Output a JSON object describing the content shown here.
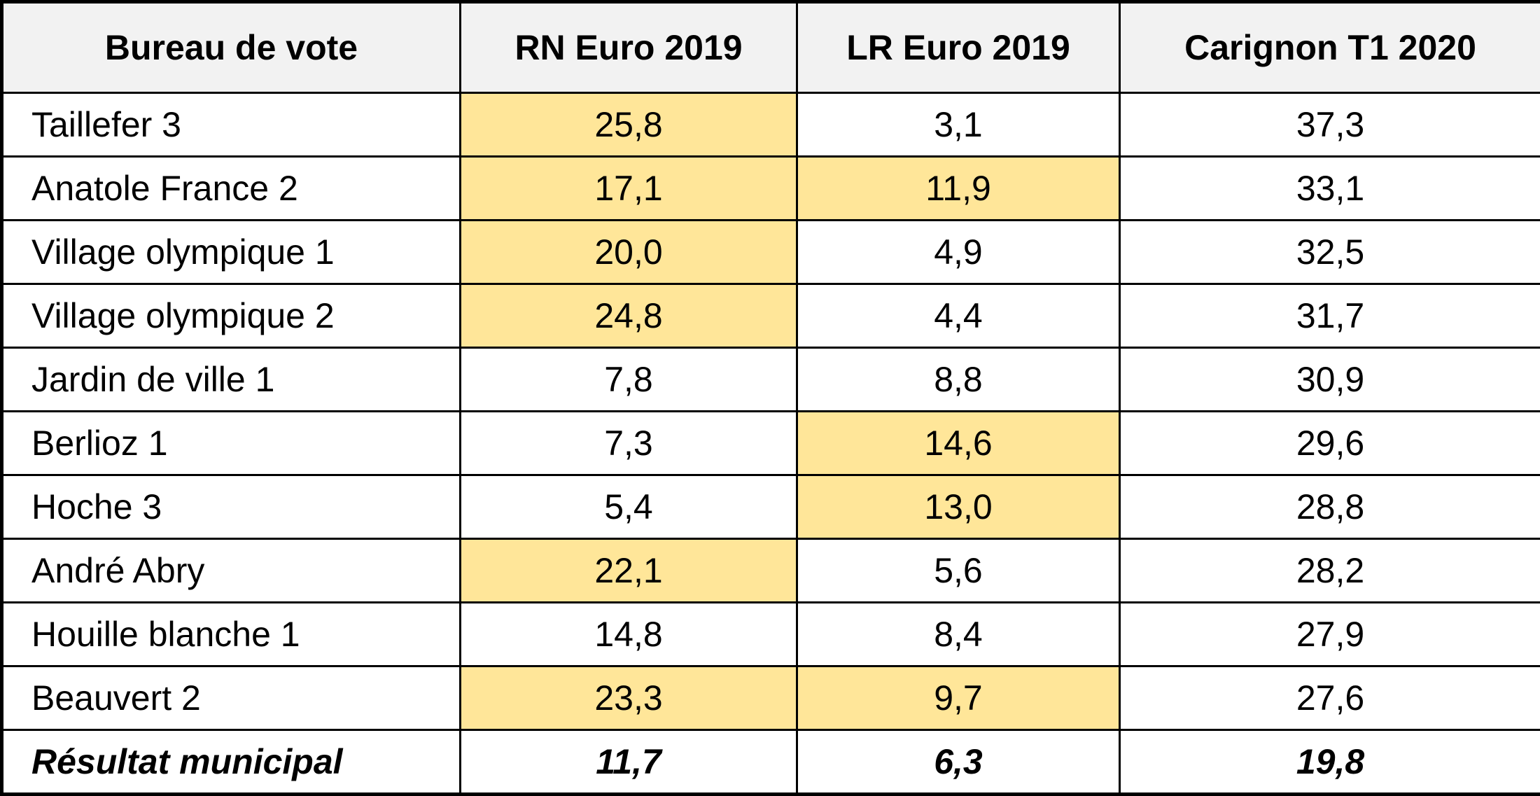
{
  "colors": {
    "highlight": "#ffe699",
    "header_bg": "#f2f2f2"
  },
  "headers": [
    "Bureau de vote",
    "RN Euro 2019",
    "LR Euro 2019",
    "Carignon T1 2020"
  ],
  "rows": [
    {
      "name": "Taillefer 3",
      "rn": "25,8",
      "lr": "3,1",
      "carignon": "37,3",
      "rn_hl": true,
      "lr_hl": false
    },
    {
      "name": "Anatole France 2",
      "rn": "17,1",
      "lr": "11,9",
      "carignon": "33,1",
      "rn_hl": true,
      "lr_hl": true
    },
    {
      "name": "Village olympique 1",
      "rn": "20,0",
      "lr": "4,9",
      "carignon": "32,5",
      "rn_hl": true,
      "lr_hl": false
    },
    {
      "name": "Village olympique 2",
      "rn": "24,8",
      "lr": "4,4",
      "carignon": "31,7",
      "rn_hl": true,
      "lr_hl": false
    },
    {
      "name": "Jardin de ville 1",
      "rn": "7,8",
      "lr": "8,8",
      "carignon": "30,9",
      "rn_hl": false,
      "lr_hl": false
    },
    {
      "name": "Berlioz 1",
      "rn": "7,3",
      "lr": "14,6",
      "carignon": "29,6",
      "rn_hl": false,
      "lr_hl": true
    },
    {
      "name": "Hoche 3",
      "rn": "5,4",
      "lr": "13,0",
      "carignon": "28,8",
      "rn_hl": false,
      "lr_hl": true
    },
    {
      "name": "André Abry",
      "rn": "22,1",
      "lr": "5,6",
      "carignon": "28,2",
      "rn_hl": true,
      "lr_hl": false
    },
    {
      "name": "Houille blanche 1",
      "rn": "14,8",
      "lr": "8,4",
      "carignon": "27,9",
      "rn_hl": false,
      "lr_hl": false
    },
    {
      "name": "Beauvert 2",
      "rn": "23,3",
      "lr": "9,7",
      "carignon": "27,6",
      "rn_hl": true,
      "lr_hl": true
    }
  ],
  "total": {
    "name": "Résultat municipal",
    "rn": "11,7",
    "lr": "6,3",
    "carignon": "19,8"
  }
}
